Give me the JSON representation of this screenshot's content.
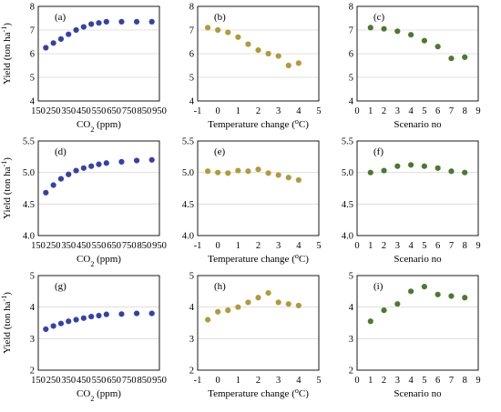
{
  "figure": {
    "ylabel_prefix": "Yield (ton ha",
    "ylabel_suffix": ")",
    "ylabel_exp": "-1"
  },
  "chart_data": [
    {
      "id": "a",
      "type": "scatter",
      "tag": "(a)",
      "xlabel_main": "CO",
      "xlabel_sub": "2",
      "xlabel_tail": " (ppm)",
      "xlim": [
        150,
        950
      ],
      "ylim": [
        4,
        8
      ],
      "xticks": [
        "150",
        "250",
        "350",
        "450",
        "550",
        "650",
        "750",
        "850",
        "950"
      ],
      "yticks": [
        "4",
        "5",
        "6",
        "7",
        "8"
      ],
      "xtick_values": [
        150,
        250,
        350,
        450,
        550,
        650,
        750,
        850,
        950
      ],
      "ytick_values": [
        4,
        5,
        6,
        7,
        8
      ],
      "grid": true,
      "show_ylabel": true,
      "color": "#3442a8",
      "series": [
        {
          "x": [
            200,
            250,
            300,
            350,
            400,
            450,
            500,
            550,
            600,
            700,
            800,
            900
          ],
          "y": [
            6.25,
            6.45,
            6.62,
            6.82,
            7.0,
            7.13,
            7.25,
            7.3,
            7.35,
            7.35,
            7.35,
            7.35
          ]
        }
      ]
    },
    {
      "id": "b",
      "type": "scatter",
      "tag": "(b)",
      "xlabel_main": "Temperature change (",
      "xlabel_sup": "o",
      "xlabel_tail": "C)",
      "xlim": [
        -1,
        5
      ],
      "ylim": [
        4,
        8
      ],
      "xticks": [
        "-1",
        "0",
        "1",
        "2",
        "3",
        "4",
        "5"
      ],
      "yticks": [
        "4",
        "5",
        "6",
        "7",
        "8"
      ],
      "xtick_values": [
        -1,
        0,
        1,
        2,
        3,
        4,
        5
      ],
      "ytick_values": [
        4,
        5,
        6,
        7,
        8
      ],
      "grid": true,
      "show_ylabel": false,
      "color": "#b29a3a",
      "series": [
        {
          "x": [
            -0.5,
            0,
            0.5,
            1,
            1.5,
            2,
            2.5,
            3,
            3.5,
            4
          ],
          "y": [
            7.1,
            7.0,
            6.9,
            6.7,
            6.4,
            6.15,
            6.0,
            5.9,
            5.5,
            5.6
          ]
        }
      ]
    },
    {
      "id": "c",
      "type": "scatter",
      "tag": "(c)",
      "xlabel_main": "Scenario no",
      "xlim": [
        0,
        9
      ],
      "ylim": [
        4,
        8
      ],
      "xticks": [
        "0",
        "1",
        "2",
        "3",
        "4",
        "5",
        "6",
        "7",
        "8",
        "9"
      ],
      "yticks": [
        "4",
        "5",
        "6",
        "7",
        "8"
      ],
      "xtick_values": [
        0,
        1,
        2,
        3,
        4,
        5,
        6,
        7,
        8,
        9
      ],
      "ytick_values": [
        4,
        5,
        6,
        7,
        8
      ],
      "grid": true,
      "show_ylabel": false,
      "color": "#4b7a2e",
      "series": [
        {
          "x": [
            1,
            2,
            3,
            4,
            5,
            6,
            7,
            8
          ],
          "y": [
            7.1,
            7.05,
            6.95,
            6.8,
            6.55,
            6.3,
            5.8,
            5.85
          ]
        }
      ]
    },
    {
      "id": "d",
      "type": "scatter",
      "tag": "(d)",
      "xlabel_main": "CO",
      "xlabel_sub": "2",
      "xlabel_tail": " (ppm)",
      "xlim": [
        150,
        950
      ],
      "ylim": [
        4.0,
        5.5
      ],
      "xticks": [
        "150",
        "250",
        "350",
        "450",
        "550",
        "650",
        "750",
        "850",
        "950"
      ],
      "yticks": [
        "4.0",
        "4.5",
        "5.0",
        "5.5"
      ],
      "xtick_values": [
        150,
        250,
        350,
        450,
        550,
        650,
        750,
        850,
        950
      ],
      "ytick_values": [
        4.0,
        4.5,
        5.0,
        5.5
      ],
      "grid": true,
      "show_ylabel": true,
      "color": "#3442a8",
      "series": [
        {
          "x": [
            200,
            250,
            300,
            350,
            400,
            450,
            500,
            550,
            600,
            700,
            800,
            900
          ],
          "y": [
            4.68,
            4.8,
            4.9,
            4.97,
            5.03,
            5.07,
            5.1,
            5.13,
            5.15,
            5.17,
            5.19,
            5.2
          ]
        }
      ]
    },
    {
      "id": "e",
      "type": "scatter",
      "tag": "(e)",
      "xlabel_main": "Temperature change (",
      "xlabel_sup": "o",
      "xlabel_tail": "C)",
      "xlim": [
        -1,
        5
      ],
      "ylim": [
        4.0,
        5.5
      ],
      "xticks": [
        "-1",
        "0",
        "1",
        "2",
        "3",
        "4",
        "5"
      ],
      "yticks": [
        "4.0",
        "4.5",
        "5.0",
        "5.5"
      ],
      "xtick_values": [
        -1,
        0,
        1,
        2,
        3,
        4,
        5
      ],
      "ytick_values": [
        4.0,
        4.5,
        5.0,
        5.5
      ],
      "grid": true,
      "show_ylabel": false,
      "color": "#b29a3a",
      "series": [
        {
          "x": [
            -0.5,
            0,
            0.5,
            1,
            1.5,
            2,
            2.5,
            3,
            3.5,
            4
          ],
          "y": [
            5.02,
            5.0,
            4.99,
            5.03,
            5.02,
            5.05,
            4.99,
            4.96,
            4.92,
            4.88
          ]
        }
      ]
    },
    {
      "id": "f",
      "type": "scatter",
      "tag": "(f)",
      "xlabel_main": "Scenario no",
      "xlim": [
        0,
        9
      ],
      "ylim": [
        4.0,
        5.5
      ],
      "xticks": [
        "0",
        "1",
        "2",
        "3",
        "4",
        "5",
        "6",
        "7",
        "8",
        "9"
      ],
      "yticks": [
        "4.0",
        "4.5",
        "5.0",
        "5.5"
      ],
      "xtick_values": [
        0,
        1,
        2,
        3,
        4,
        5,
        6,
        7,
        8,
        9
      ],
      "ytick_values": [
        4.0,
        4.5,
        5.0,
        5.5
      ],
      "grid": true,
      "show_ylabel": false,
      "color": "#4b7a2e",
      "series": [
        {
          "x": [
            1,
            2,
            3,
            4,
            5,
            6,
            7,
            8
          ],
          "y": [
            5.0,
            5.03,
            5.1,
            5.12,
            5.1,
            5.07,
            5.02,
            5.0
          ]
        }
      ]
    },
    {
      "id": "g",
      "type": "scatter",
      "tag": "(g)",
      "xlabel_main": "CO",
      "xlabel_sub": "2",
      "xlabel_tail": " (ppm)",
      "xlim": [
        150,
        950
      ],
      "ylim": [
        2,
        5
      ],
      "xticks": [
        "150",
        "250",
        "350",
        "450",
        "550",
        "650",
        "750",
        "850",
        "950"
      ],
      "yticks": [
        "2",
        "3",
        "4",
        "5"
      ],
      "xtick_values": [
        150,
        250,
        350,
        450,
        550,
        650,
        750,
        850,
        950
      ],
      "ytick_values": [
        2,
        3,
        4,
        5
      ],
      "grid": true,
      "show_ylabel": true,
      "color": "#3442a8",
      "series": [
        {
          "x": [
            200,
            250,
            300,
            350,
            400,
            450,
            500,
            550,
            600,
            700,
            800,
            900
          ],
          "y": [
            3.3,
            3.4,
            3.48,
            3.55,
            3.6,
            3.65,
            3.7,
            3.73,
            3.77,
            3.78,
            3.8,
            3.8
          ]
        }
      ]
    },
    {
      "id": "h",
      "type": "scatter",
      "tag": "(h)",
      "xlabel_main": "Temperature change (",
      "xlabel_sup": "o",
      "xlabel_tail": "C)",
      "xlim": [
        -1,
        5
      ],
      "ylim": [
        2,
        5
      ],
      "xticks": [
        "-1",
        "0",
        "1",
        "2",
        "3",
        "4",
        "5"
      ],
      "yticks": [
        "2",
        "3",
        "4",
        "5"
      ],
      "xtick_values": [
        -1,
        0,
        1,
        2,
        3,
        4,
        5
      ],
      "ytick_values": [
        2,
        3,
        4,
        5
      ],
      "grid": true,
      "show_ylabel": false,
      "color": "#b29a3a",
      "series": [
        {
          "x": [
            -0.5,
            0,
            0.5,
            1,
            1.5,
            2,
            2.5,
            3,
            3.5,
            4
          ],
          "y": [
            3.6,
            3.85,
            3.9,
            4.0,
            4.15,
            4.3,
            4.45,
            4.15,
            4.1,
            4.05
          ]
        }
      ]
    },
    {
      "id": "i",
      "type": "scatter",
      "tag": "(i)",
      "xlabel_main": "Scenario no",
      "xlim": [
        0,
        9
      ],
      "ylim": [
        2,
        5
      ],
      "xticks": [
        "0",
        "1",
        "2",
        "3",
        "4",
        "5",
        "6",
        "7",
        "8",
        "9"
      ],
      "yticks": [
        "2",
        "3",
        "4",
        "5"
      ],
      "xtick_values": [
        0,
        1,
        2,
        3,
        4,
        5,
        6,
        7,
        8,
        9
      ],
      "ytick_values": [
        2,
        3,
        4,
        5
      ],
      "grid": true,
      "show_ylabel": false,
      "color": "#4b7a2e",
      "series": [
        {
          "x": [
            1,
            2,
            3,
            4,
            5,
            6,
            7,
            8
          ],
          "y": [
            3.55,
            3.9,
            4.1,
            4.5,
            4.65,
            4.4,
            4.35,
            4.3
          ]
        }
      ]
    }
  ]
}
